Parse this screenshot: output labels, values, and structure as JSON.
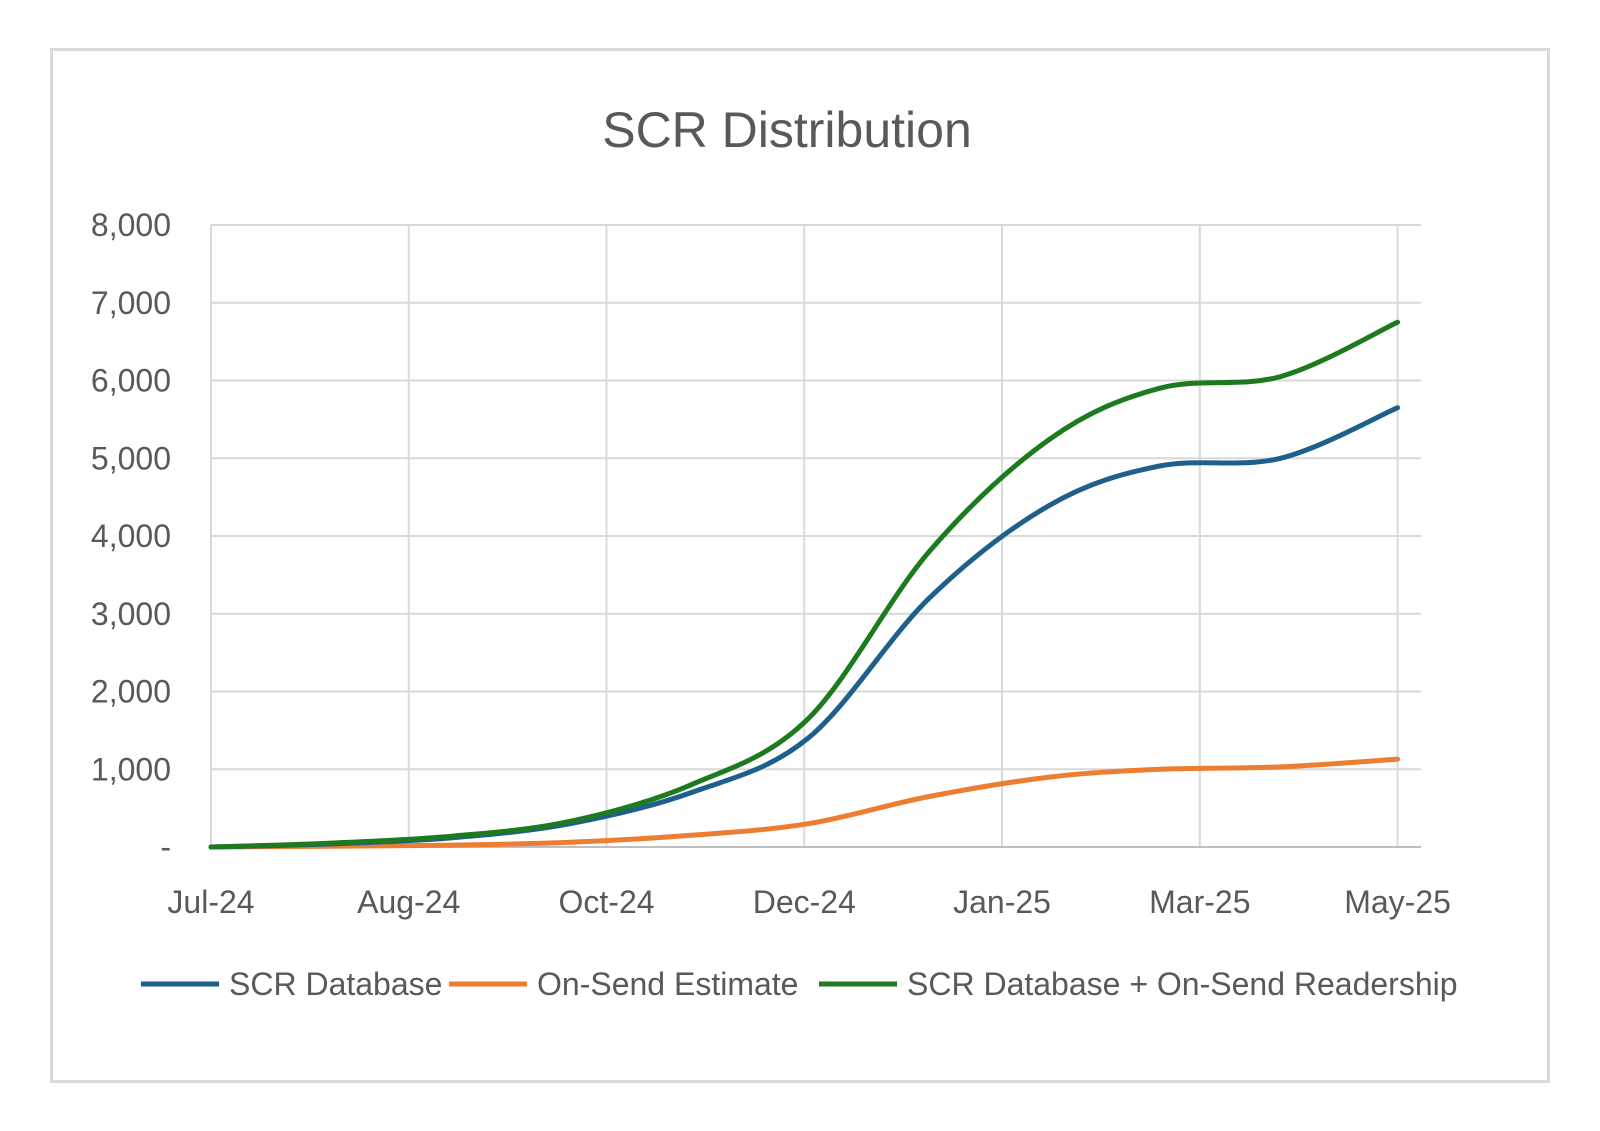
{
  "chart_data": {
    "type": "line",
    "title": "SCR Distribution",
    "xlabel": "",
    "ylabel": "",
    "x_tick_labels": [
      "Jul-24",
      "Aug-24",
      "Oct-24",
      "Dec-24",
      "Jan-25",
      "Mar-25",
      "May-25"
    ],
    "y_tick_labels": [
      "-",
      "1,000",
      "2,000",
      "3,000",
      "4,000",
      "5,000",
      "6,000",
      "7,000",
      "8,000"
    ],
    "ylim": [
      0,
      8000
    ],
    "xlim": [
      "2024-07-01",
      "2025-05-07"
    ],
    "grid": true,
    "legend": "bottom",
    "x": [
      "2024-07-01",
      "2024-08-01",
      "2024-09-01",
      "2024-10-01",
      "2024-11-01",
      "2024-12-01",
      "2025-01-01",
      "2025-02-01",
      "2025-03-01",
      "2025-04-01",
      "2025-05-01"
    ],
    "series": [
      {
        "name": "SCR Database",
        "color": "#1f5f8b",
        "values": [
          0,
          40,
          120,
          300,
          700,
          1400,
          3200,
          4400,
          4900,
          5000,
          5650
        ]
      },
      {
        "name": "On-Send Estimate",
        "color": "#ed7d31",
        "values": [
          0,
          10,
          25,
          60,
          150,
          300,
          650,
          900,
          1000,
          1030,
          1130
        ]
      },
      {
        "name": "SCR Database + On-Send Readership",
        "color": "#1e7a1e",
        "values": [
          0,
          50,
          140,
          330,
          800,
          1650,
          3800,
          5250,
          5900,
          6050,
          6750
        ]
      }
    ]
  }
}
